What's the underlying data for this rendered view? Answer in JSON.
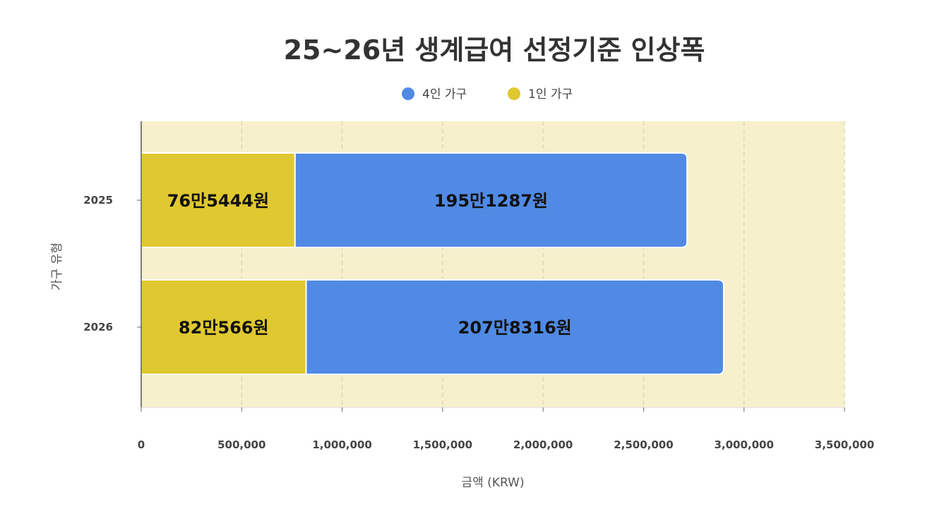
{
  "chart_data": {
    "type": "bar",
    "orientation": "horizontal",
    "stacked": true,
    "title": "25~26년 생계급여 선정기준 인상폭",
    "xlabel": "금액 (KRW)",
    "ylabel": "가구 유형",
    "categories": [
      "2025",
      "2026"
    ],
    "xlim": [
      0,
      3500000
    ],
    "x_ticks": [
      0,
      500000,
      1000000,
      1500000,
      2000000,
      2500000,
      3000000,
      3500000
    ],
    "x_tick_labels": [
      "0",
      "500,000",
      "1,000,000",
      "1,500,000",
      "2,000,000",
      "2,500,000",
      "3,000,000",
      "3,500,000"
    ],
    "grid": true,
    "legend_position": "top",
    "plot_background": "#f7f0cc",
    "series": [
      {
        "name": "1인 가구",
        "color": "#e0c830",
        "values": [
          765444,
          820566
        ],
        "data_labels": [
          "76만5444원",
          "82만566원"
        ]
      },
      {
        "name": "4인 가구",
        "color": "#508ae4",
        "values": [
          1951287,
          2078316
        ],
        "data_labels": [
          "195만1287원",
          "207만8316원"
        ]
      }
    ],
    "legend_order": [
      "4인 가구",
      "1인 가구"
    ]
  }
}
